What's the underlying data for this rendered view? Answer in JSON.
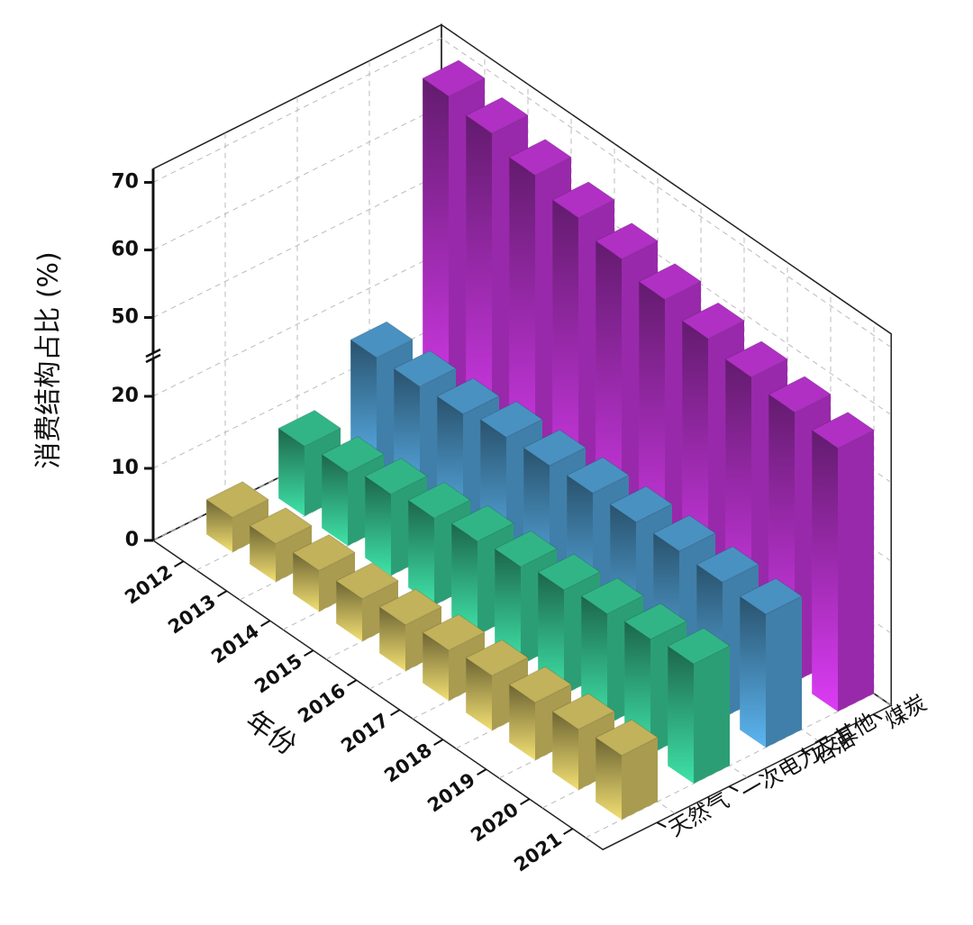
{
  "chart_data": {
    "type": "bar3d",
    "y_label": "消费结构占比 (%)",
    "x_label": "年份",
    "categories": [
      "2012",
      "2013",
      "2014",
      "2015",
      "2016",
      "2017",
      "2018",
      "2019",
      "2020",
      "2021"
    ],
    "series": [
      {
        "name": "天然气",
        "color": "#f2df72",
        "values": [
          4.8,
          5.3,
          5.7,
          5.9,
          6.4,
          7.0,
          7.6,
          8.0,
          8.4,
          8.9
        ]
      },
      {
        "name": "一次电力及其他",
        "color": "#3fe3a8",
        "values": [
          9.7,
          10.2,
          11.3,
          12.1,
          13.0,
          13.6,
          14.5,
          15.3,
          15.9,
          16.6
        ]
      },
      {
        "name": "石油",
        "color": "#5cb6f2",
        "values": [
          17.0,
          17.1,
          17.4,
          18.3,
          18.5,
          18.8,
          18.9,
          19.0,
          18.8,
          18.5
        ]
      },
      {
        "name": "煤炭",
        "color": "#dc3cf5",
        "values": [
          68.5,
          67.4,
          65.6,
          63.7,
          62.0,
          60.4,
          59.0,
          57.7,
          56.9,
          56.0
        ]
      }
    ],
    "ylim": [
      0,
      72
    ],
    "y_break": [
      25,
      45
    ],
    "yticks": [
      0,
      10,
      20,
      50,
      60,
      70
    ],
    "grid": true
  }
}
